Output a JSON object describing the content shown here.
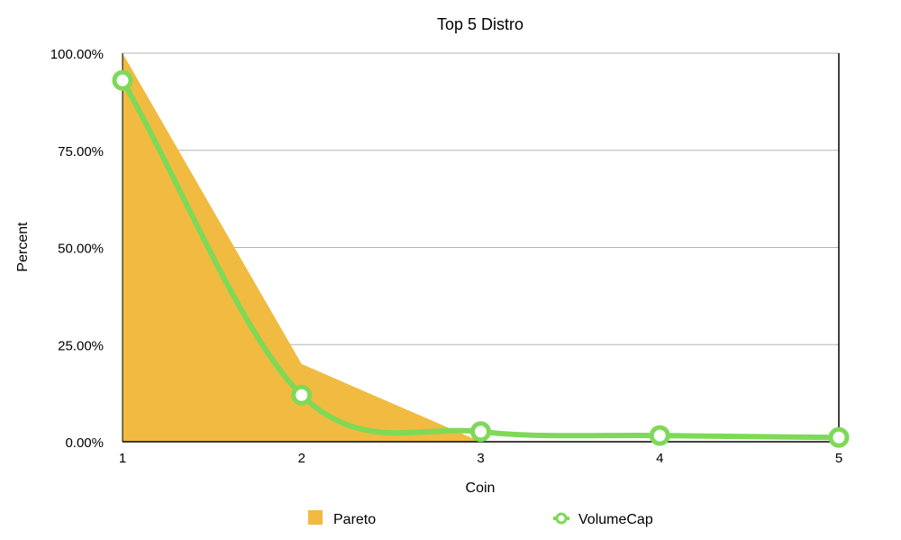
{
  "chart_data": {
    "type": "area",
    "title": "Top 5 Distro",
    "xlabel": "Coin",
    "ylabel": "Percent",
    "categories": [
      "1",
      "2",
      "3",
      "4",
      "5"
    ],
    "ylim": [
      0,
      1
    ],
    "yticks": [
      "0.00%",
      "25.00%",
      "50.00%",
      "75.00%",
      "100.00%"
    ],
    "ytick_values": [
      0,
      0.25,
      0.5,
      0.75,
      1.0
    ],
    "grid": true,
    "legend": "bottom",
    "series": [
      {
        "name": "Pareto",
        "kind": "area",
        "color": "#F0BB40",
        "values": [
          1.0,
          0.2,
          0.0,
          0.0,
          0.0
        ]
      },
      {
        "name": "VolumeCap",
        "kind": "line",
        "color": "#7ED957",
        "values": [
          0.93,
          0.12,
          0.026,
          0.016,
          0.011
        ]
      }
    ]
  }
}
